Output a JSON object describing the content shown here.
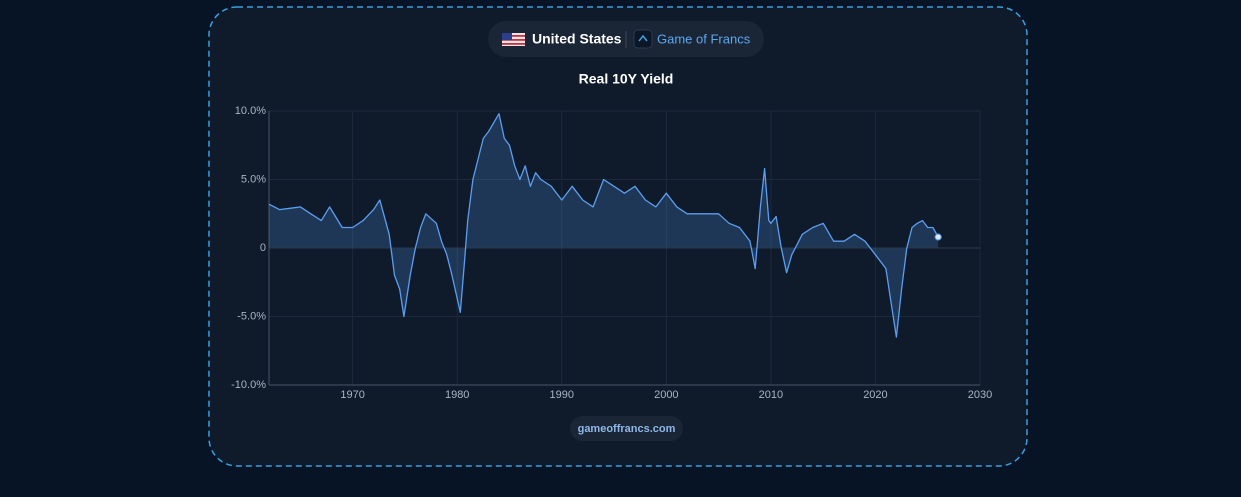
{
  "header": {
    "country": "United States",
    "brand": "Game of Francs"
  },
  "chart_data": {
    "type": "line",
    "title": "Real 10Y Yield",
    "x": [
      1962,
      1963,
      1964,
      1965,
      1966,
      1967,
      1967.8,
      1969,
      1970,
      1971,
      1972,
      1972.6,
      1973.5,
      1974,
      1974.5,
      1974.9,
      1975.5,
      1976,
      1976.5,
      1977,
      1978,
      1978.5,
      1979,
      1979.5,
      1980.3,
      1980.7,
      1981,
      1981.5,
      1982,
      1982.5,
      1983,
      1984,
      1984.5,
      1985,
      1985.5,
      1986,
      1986.5,
      1987,
      1987.5,
      1988,
      1989,
      1990,
      1991,
      1992,
      1993,
      1994,
      1995,
      1996,
      1997,
      1998,
      1999,
      2000,
      2001,
      2002,
      2003,
      2004,
      2005,
      2006,
      2007,
      2008,
      2008.5,
      2009,
      2009.4,
      2009.8,
      2010,
      2010.5,
      2011,
      2011.5,
      2012,
      2013,
      2014,
      2015,
      2016,
      2017,
      2018,
      2019,
      2020,
      2020.5,
      2021,
      2021.5,
      2022,
      2022.5,
      2023,
      2023.5,
      2024,
      2024.5,
      2025,
      2025.5,
      2026
    ],
    "series": [
      {
        "name": "Real 10Y Yield",
        "color": "#5b9ef0",
        "values": [
          3.2,
          2.8,
          2.9,
          3.0,
          2.5,
          2.0,
          3.0,
          1.5,
          1.5,
          2.0,
          2.8,
          3.5,
          1.0,
          -2,
          -3,
          -5,
          -2,
          0,
          1.5,
          2.5,
          1.8,
          0.5,
          -0.5,
          -2,
          -4.7,
          -1,
          2,
          5,
          6.5,
          8,
          8.5,
          9.8,
          8,
          7.5,
          6,
          5,
          6,
          4.5,
          5.5,
          5,
          4.5,
          3.5,
          4.5,
          3.5,
          3,
          5,
          4.5,
          4,
          4.5,
          3.5,
          3,
          4,
          3,
          2.5,
          2.5,
          2.5,
          2.5,
          1.8,
          1.5,
          0.5,
          -1.5,
          3,
          5.8,
          2,
          1.8,
          2.3,
          0,
          -1.8,
          -0.5,
          1,
          1.5,
          1.8,
          0.5,
          0.5,
          1,
          0.5,
          -0.5,
          -1,
          -1.5,
          -4,
          -6.5,
          -3,
          0,
          1.5,
          1.8,
          2.0,
          1.5,
          1.5,
          0.8
        ]
      }
    ],
    "xlim": [
      1962,
      2030
    ],
    "xticks": [
      1970,
      1980,
      1990,
      2000,
      2010,
      2020,
      2030
    ],
    "ylim": [
      -10,
      10
    ],
    "yticks": [
      {
        "value": -10,
        "label": "-10.0%"
      },
      {
        "value": -5,
        "label": "-5.0%"
      },
      0,
      {
        "value": 5,
        "label": "5.0%"
      },
      {
        "value": 10,
        "label": "10.0%"
      }
    ],
    "grid": true
  },
  "footer": {
    "site": "gameoffrancs.com"
  }
}
